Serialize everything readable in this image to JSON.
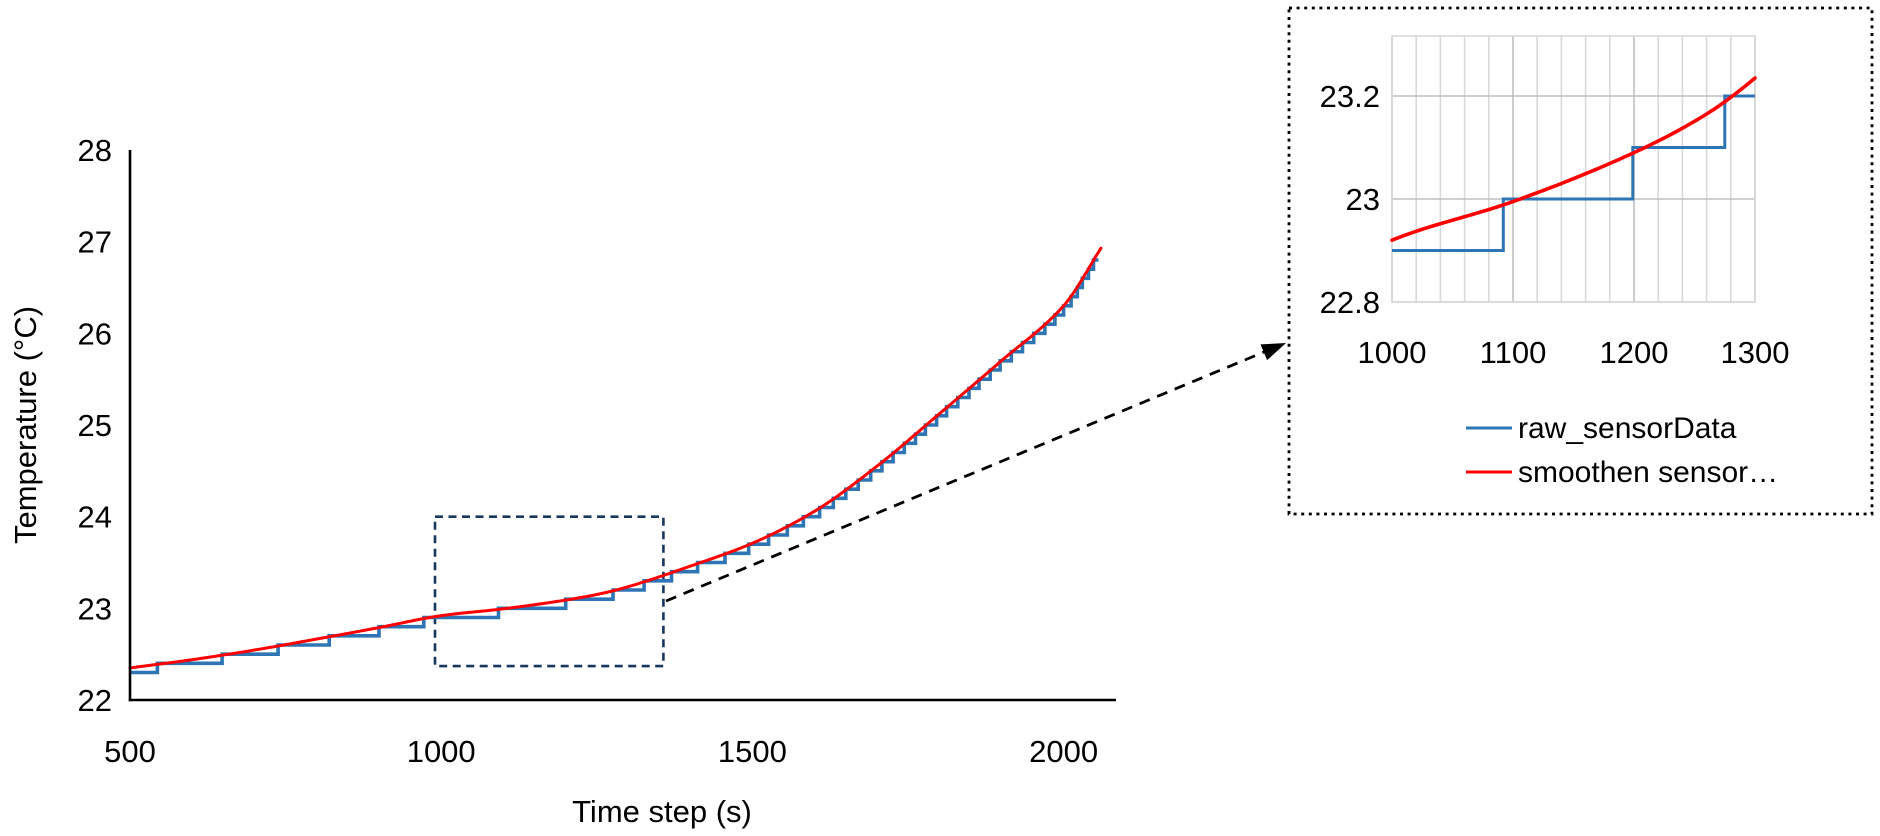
{
  "figure": {
    "background": "#ffffff",
    "description": "Line chart of sensor temperature vs time step with a dashed zoom-selection box and dashed arrow pointing to a magnified inset chart (top right) with legend."
  },
  "colors": {
    "raw_series_blue": "#2E75B6",
    "smooth_series_red": "#FE0000",
    "zoom_box_navy": "#17375E",
    "arrow_black": "#000000",
    "inset_grid_minor": "#D9D9D9",
    "inset_grid_major": "#BFBFBF",
    "text_black": "#000000"
  },
  "chart_data": [
    {
      "id": "main",
      "type": "line",
      "title": "",
      "xlabel": "Time step (s)",
      "ylabel": "Temperature (°C)",
      "xlim": [
        500,
        2085
      ],
      "ylim": [
        22,
        28
      ],
      "x_ticks": [
        500,
        1000,
        1500,
        2000
      ],
      "y_ticks": [
        22,
        23,
        24,
        25,
        26,
        27,
        28
      ],
      "grid": false,
      "legend_position": "none",
      "series": [
        {
          "name": "raw_sensorData",
          "type": "step",
          "color": "#2E75B6",
          "derivation": "smooth curve quantized to 0.1 °C sensor resolution (staircase)",
          "resolution_C": 0.1,
          "start": [
            500,
            22.3
          ],
          "end": [
            2058,
            26.8
          ]
        },
        {
          "name": "smoothen sensor…",
          "type": "smooth",
          "color": "#FE0000",
          "points": [
            [
              500,
              22.35
            ],
            [
              600,
              22.44
            ],
            [
              700,
              22.545
            ],
            [
              800,
              22.665
            ],
            [
              900,
              22.79
            ],
            [
              1000,
              22.92
            ],
            [
              1100,
              22.995
            ],
            [
              1200,
              23.09
            ],
            [
              1260,
              23.165
            ],
            [
              1300,
              23.235
            ],
            [
              1400,
              23.46
            ],
            [
              1500,
              23.71
            ],
            [
              1600,
              24.06
            ],
            [
              1700,
              24.55
            ],
            [
              1800,
              25.12
            ],
            [
              1900,
              25.7
            ],
            [
              2000,
              26.3
            ],
            [
              2062,
              26.95
            ]
          ]
        }
      ],
      "annotations": {
        "zoom_box": {
          "x": [
            990,
            1357
          ],
          "y": [
            22.37,
            24.0
          ],
          "style": "dashed navy rectangle"
        },
        "arrow": {
          "from_xy": [
            1010,
            23.08
          ],
          "style": "dashed black arrow pointing to inset"
        }
      }
    },
    {
      "id": "inset",
      "type": "line",
      "title": "",
      "xlabel": "",
      "ylabel": "",
      "xlim": [
        1000,
        1300
      ],
      "ylim": [
        22.8,
        23.313
      ],
      "x_ticks": [
        1000,
        1100,
        1200,
        1300
      ],
      "x_tick_labels": [
        "1000",
        "1100",
        "1200",
        "1300"
      ],
      "x_minor_grid_step": 20,
      "y_ticks": [
        22.8,
        23,
        23.2
      ],
      "y_tick_labels": [
        "22.8",
        "23",
        "23.2"
      ],
      "grid": true,
      "legend_position": "bottom",
      "legend": [
        {
          "label": "raw_sensorData",
          "color": "#2E75B6"
        },
        {
          "label": "smoothen sensor…",
          "color": "#FE0000"
        }
      ],
      "series": [
        {
          "name": "raw_sensorData",
          "type": "step",
          "color": "#2E75B6",
          "step_points": [
            [
              1000,
              22.9
            ],
            [
              1092,
              23.0
            ],
            [
              1198,
              23.1
            ],
            [
              1282,
              23.2
            ],
            [
              1300,
              23.2
            ]
          ]
        },
        {
          "name": "smoothen sensor…",
          "type": "smooth",
          "color": "#FE0000",
          "points": [
            [
              1000,
              22.92
            ],
            [
              1100,
              22.995
            ],
            [
              1200,
              23.09
            ],
            [
              1260,
              23.165
            ],
            [
              1300,
              23.235
            ]
          ]
        }
      ]
    }
  ]
}
